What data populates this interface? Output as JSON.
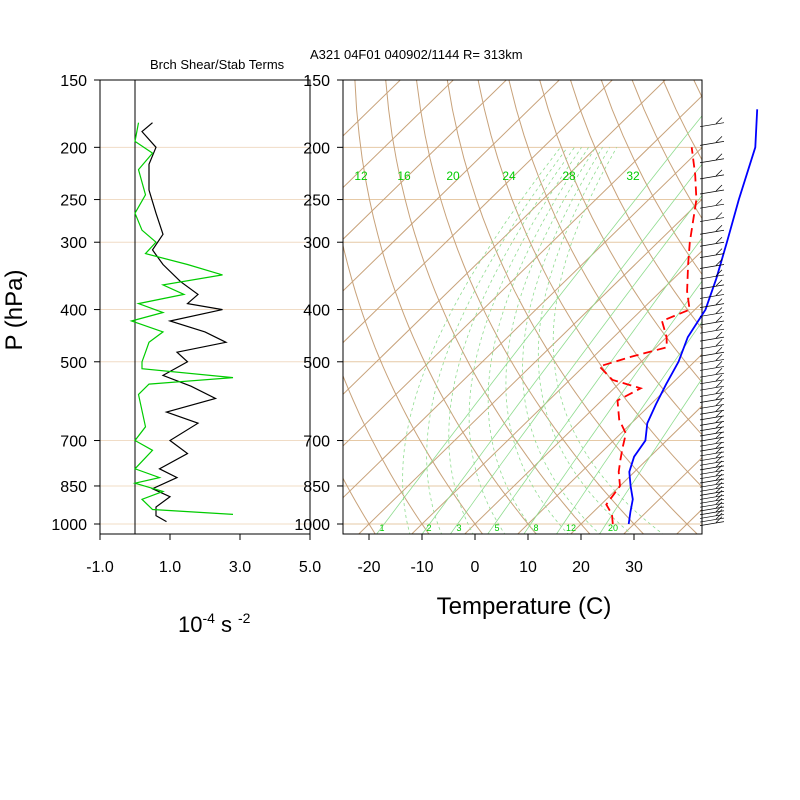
{
  "header": {
    "left_title": "Brch Shear/Stab Terms",
    "right_title": "A321 04F01 040902/1144 R= 313km"
  },
  "left_panel": {
    "ylabel": "P (hPa)",
    "xlabel_base": "10",
    "xlabel_exp": "-4",
    "xlabel_unit": "s",
    "xlabel_unit_exp": "-2"
  },
  "right_panel": {
    "xlabel": "Temperature (C)"
  },
  "colors": {
    "temperature": "#0000ff",
    "dewpoint": "#ff0000",
    "shear_term": "#000000",
    "stability_term": "#00cc00",
    "skewt_grid": "#c8a27a",
    "mixing_ratio": "#00cc00"
  },
  "chart_data": [
    {
      "type": "line",
      "panel": "left",
      "y_axis": "pressure",
      "y_scale": "log",
      "ylim": [
        1000,
        150
      ],
      "xlim": [
        -1.0,
        5.0
      ],
      "x_tick_labels": [
        "-1.0",
        "1.0",
        "3.0",
        "5.0"
      ],
      "y_tick_labels": [
        "150",
        "200",
        "250",
        "300",
        "400",
        "500",
        "700",
        "850",
        "1000"
      ],
      "series": [
        {
          "role": "shear term",
          "color": "#000000",
          "points": [
            [
              0.5,
              180
            ],
            [
              0.2,
              187
            ],
            [
              0.6,
              200
            ],
            [
              0.4,
              215
            ],
            [
              0.4,
              240
            ],
            [
              0.6,
              265
            ],
            [
              0.8,
              290
            ],
            [
              0.5,
              310
            ],
            [
              0.8,
              330
            ],
            [
              1.3,
              355
            ],
            [
              1.8,
              375
            ],
            [
              1.5,
              390
            ],
            [
              2.5,
              400
            ],
            [
              1.0,
              420
            ],
            [
              2.0,
              440
            ],
            [
              2.6,
              460
            ],
            [
              1.2,
              480
            ],
            [
              1.5,
              500
            ],
            [
              0.8,
              530
            ],
            [
              1.6,
              555
            ],
            [
              2.3,
              585
            ],
            [
              0.9,
              620
            ],
            [
              1.8,
              650
            ],
            [
              1.0,
              700
            ],
            [
              1.5,
              740
            ],
            [
              0.7,
              790
            ],
            [
              1.2,
              820
            ],
            [
              0.5,
              860
            ],
            [
              1.0,
              890
            ],
            [
              0.6,
              930
            ],
            [
              0.6,
              965
            ],
            [
              0.9,
              990
            ]
          ]
        },
        {
          "role": "stability term",
          "color": "#00cc00",
          "points": [
            [
              0.1,
              180
            ],
            [
              0.0,
              195
            ],
            [
              0.5,
              205
            ],
            [
              0.1,
              220
            ],
            [
              0.3,
              245
            ],
            [
              0.0,
              265
            ],
            [
              0.2,
              285
            ],
            [
              0.6,
              300
            ],
            [
              0.3,
              315
            ],
            [
              1.5,
              330
            ],
            [
              2.5,
              345
            ],
            [
              0.8,
              360
            ],
            [
              1.4,
              375
            ],
            [
              0.1,
              390
            ],
            [
              0.8,
              405
            ],
            [
              -0.1,
              420
            ],
            [
              0.8,
              440
            ],
            [
              0.4,
              460
            ],
            [
              0.3,
              480
            ],
            [
              0.2,
              500
            ],
            [
              0.2,
              515
            ],
            [
              2.8,
              535
            ],
            [
              0.4,
              550
            ],
            [
              0.1,
              575
            ],
            [
              0.3,
              660
            ],
            [
              0.0,
              700
            ],
            [
              0.5,
              730
            ],
            [
              0.0,
              790
            ],
            [
              0.7,
              820
            ],
            [
              0.0,
              840
            ],
            [
              0.8,
              870
            ],
            [
              0.2,
              900
            ],
            [
              0.5,
              940
            ],
            [
              2.8,
              960
            ]
          ]
        }
      ]
    },
    {
      "type": "line",
      "panel": "right",
      "subtype": "skew-T log-P",
      "y_axis": "pressure",
      "y_scale": "log",
      "ylim": [
        1000,
        150
      ],
      "xlim": [
        -25,
        40
      ],
      "x_tick_labels": [
        "-20",
        "-10",
        "0",
        "10",
        "20",
        "30"
      ],
      "y_tick_labels": [
        "150",
        "200",
        "250",
        "300",
        "400",
        "500",
        "700",
        "850",
        "1000"
      ],
      "mixing_ratio_labels": [
        "12",
        "16",
        "20",
        "24",
        "28",
        "32"
      ],
      "mixing_ratio_bottom_labels": [
        "1",
        "2",
        "3",
        "5",
        "8",
        "12",
        "20"
      ],
      "grid": true,
      "series": [
        {
          "role": "temperature",
          "color": "#0000ff",
          "style": "solid",
          "points": [
            [
              29,
              1000
            ],
            [
              27,
              950
            ],
            [
              25,
              900
            ],
            [
              22,
              850
            ],
            [
              19,
              800
            ],
            [
              17,
              750
            ],
            [
              16,
              700
            ],
            [
              13,
              650
            ],
            [
              11,
              600
            ],
            [
              9,
              550
            ],
            [
              7,
              500
            ],
            [
              4,
              450
            ],
            [
              2,
              400
            ],
            [
              -2,
              350
            ],
            [
              -7,
              300
            ],
            [
              -13,
              250
            ],
            [
              -20,
              200
            ],
            [
              -27,
              170
            ]
          ]
        },
        {
          "role": "dewpoint",
          "color": "#ff0000",
          "style": "dashed",
          "points": [
            [
              26,
              1000
            ],
            [
              24,
              960
            ],
            [
              21,
              920
            ],
            [
              20,
              850
            ],
            [
              17,
              800
            ],
            [
              15,
              760
            ],
            [
              13,
              720
            ],
            [
              11,
              680
            ],
            [
              7,
              640
            ],
            [
              3,
              590
            ],
            [
              5,
              560
            ],
            [
              -2,
              540
            ],
            [
              -7,
              510
            ],
            [
              -3,
              490
            ],
            [
              2,
              470
            ],
            [
              0,
              450
            ],
            [
              -4,
              420
            ],
            [
              -1,
              400
            ],
            [
              -5,
              370
            ],
            [
              -10,
              330
            ],
            [
              -14,
              300
            ],
            [
              -21,
              250
            ],
            [
              -26,
              225
            ],
            [
              -32,
              200
            ]
          ]
        }
      ]
    }
  ]
}
